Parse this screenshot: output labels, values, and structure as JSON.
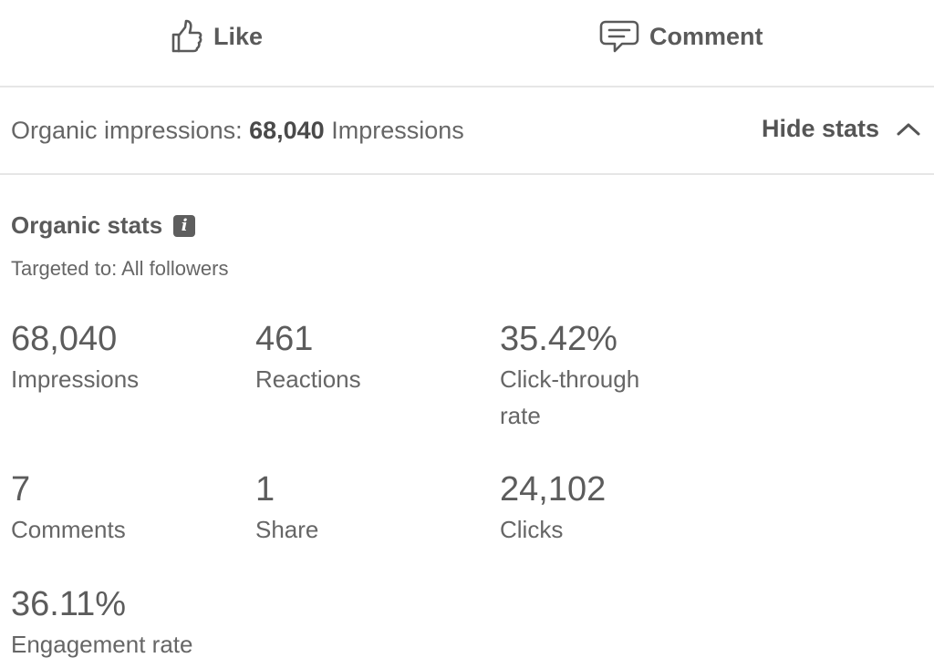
{
  "actions": {
    "like_label": "Like",
    "comment_label": "Comment"
  },
  "impressions_bar": {
    "prefix": "Organic impressions:",
    "value": "68,040",
    "suffix": "Impressions",
    "hide_stats_label": "Hide stats"
  },
  "organic_stats": {
    "title": "Organic stats",
    "targeted": "Targeted to: All followers",
    "stats": [
      {
        "value": "68,040",
        "label": "Impressions"
      },
      {
        "value": "461",
        "label": "Reactions"
      },
      {
        "value": "35.42%",
        "label": "Click-through rate"
      },
      {
        "value": "7",
        "label": "Comments"
      },
      {
        "value": "1",
        "label": "Share"
      },
      {
        "value": "24,102",
        "label": "Clicks"
      },
      {
        "value": "36.11%",
        "label": "Engagement rate"
      }
    ]
  },
  "icons": {
    "like": "thumbs-up-icon",
    "comment": "speech-bubble-icon",
    "hide": "chevron-up-icon",
    "info": "info-icon"
  }
}
